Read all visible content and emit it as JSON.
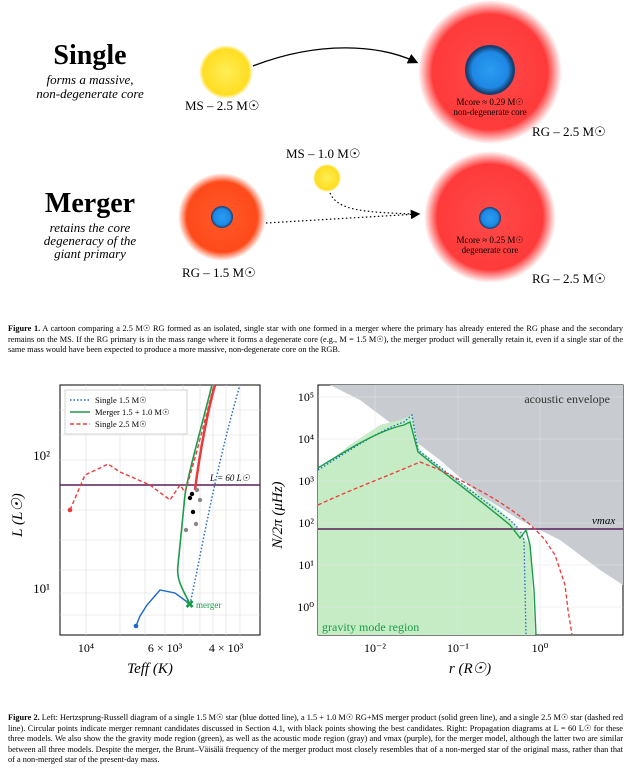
{
  "figure1": {
    "single_title": "Single",
    "single_subtitle_line1": "forms a massive,",
    "single_subtitle_line2": "non-degenerate core",
    "merger_title": "Merger",
    "merger_subtitle_line1": "retains the core",
    "merger_subtitle_line2": "degeneracy of the",
    "merger_subtitle_line3": "giant primary",
    "ms_25": "MS – 2.5 M☉",
    "ms_10": "MS – 1.0 M☉",
    "rg_15": "RG – 1.5 M☉",
    "rg_25_top": "RG – 2.5 M☉",
    "rg_25_bottom": "RG – 2.5 M☉",
    "core_top_mass": "Mcore ≈ 0.29 M☉",
    "core_top_type": "non-degenerate core",
    "core_bottom_mass": "Mcore ≈ 0.25 M☉",
    "core_bottom_type": "degenerate core",
    "caption_label": "Figure 1.",
    "caption_text": "A cartoon comparing a 2.5 M☉ RG formed as an isolated, single star with one formed in a merger where the primary has already entered the RG phase and the secondary remains on the MS. If the RG primary is in the mass range where it forms a degenerate core (e.g., M = 1.5 M☉), the merger product will generally retain it, even if a single star of the same mass would have been expected to produce a more massive, non-degenerate core on the RGB."
  },
  "figure2": {
    "caption_label": "Figure 2.",
    "caption_text": "Left: Hertzsprung-Russell diagram of a single 1.5 M☉ star (blue dotted line), a 1.5 + 1.0 M☉ RG+MS merger product (solid green line), and a single 2.5 M☉ star (dashed red line). Circular points indicate merger remnant candidates discussed in Section 4.1, with black points showing the best candidates. Right: Propagation diagrams at L = 60 L☉ for these three models. We also show the the gravity mode region (green), as well as the acoustic mode region (gray) and νmax (purple), for the merger model, although the latter two are similar between all three models. Despite the merger, the Brunt–Väisälä frequency of the merger product most closely resembles that of a non-merged star of the original mass, rather than that of a non-merged star of the present-day mass.",
    "left": {
      "xlabel": "Teff (K)",
      "ylabel": "L (L☉)",
      "xticks": [
        "10⁴",
        "6 × 10³",
        "4 × 10³"
      ],
      "yticks": [
        "10²",
        "10¹"
      ],
      "legend": [
        "Single 1.5 M☉",
        "Merger 1.5 + 1.0 M☉",
        "Single 2.5 M☉"
      ],
      "hline_label": "L = 60 L☉",
      "annotation": "merger"
    },
    "right": {
      "xlabel": "r (R☉)",
      "ylabel": "N/2π (μHz)",
      "xticks": [
        "10⁻²",
        "10⁻¹",
        "10⁰"
      ],
      "yticks": [
        "10⁵",
        "10⁴",
        "10³",
        "10²",
        "10¹",
        "10⁰"
      ],
      "acoustic_label": "acoustic envelope",
      "gravity_label": "gravity mode region",
      "numax_label": "νmax"
    }
  },
  "chart_data": [
    {
      "type": "line",
      "xlabel": "Teff (K)",
      "ylabel": "L (L☉)",
      "xscale": "log-reversed",
      "yscale": "log",
      "xlim": [
        12000,
        3400
      ],
      "ylim": [
        6,
        300
      ],
      "legend_position": "top-left",
      "grid": true,
      "hline": 60,
      "series": [
        {
          "name": "Single 1.5 M☉",
          "style": "blue dotted",
          "x": [
            4900,
            4700,
            4400,
            4100
          ],
          "y": [
            7.5,
            25,
            100,
            300
          ]
        },
        {
          "name": "Merger 1.5 + 1.0 M☉",
          "style": "green solid",
          "x": [
            7600,
            7200,
            6300,
            5400,
            5200,
            5000,
            4900,
            4700
          ],
          "y": [
            5,
            7,
            9,
            7.5,
            20,
            60,
            130,
            300
          ]
        },
        {
          "name": "Single 2.5 M☉",
          "style": "red dashed",
          "x": [
            11000,
            9400,
            8900,
            7600,
            6700,
            5500,
            5100,
            4700
          ],
          "y": [
            40,
            75,
            80,
            70,
            60,
            40,
            60,
            300
          ]
        }
      ]
    },
    {
      "type": "area",
      "xlabel": "r (R☉)",
      "ylabel": "N/2π (μHz)",
      "xscale": "log",
      "yscale": "log",
      "xlim": [
        0.002,
        8
      ],
      "ylim": [
        0.1,
        130000
      ],
      "numax": 70,
      "series": [
        {
          "name": "Single 1.5 M☉",
          "style": "blue dotted",
          "x": [
            0.002,
            0.01,
            0.02,
            0.03,
            0.04,
            0.1,
            0.3,
            0.5,
            0.55,
            0.6
          ],
          "y": [
            2000,
            7000,
            20000,
            30000,
            6000,
            1500,
            250,
            90,
            10,
            0.1
          ]
        },
        {
          "name": "Merger 1.5 + 1.0 M☉",
          "style": "green solid",
          "x": [
            0.002,
            0.01,
            0.02,
            0.03,
            0.04,
            0.1,
            0.3,
            0.6,
            0.7,
            0.8,
            0.9
          ],
          "y": [
            2000,
            7000,
            20000,
            25000,
            6000,
            1500,
            250,
            80,
            50,
            10,
            0.1
          ]
        },
        {
          "name": "Single 2.5 M☉",
          "style": "red dashed",
          "x": [
            0.002,
            0.01,
            0.03,
            0.05,
            0.1,
            0.3,
            1,
            1.5,
            2.5,
            3
          ],
          "y": [
            300,
            800,
            2500,
            3000,
            1500,
            400,
            150,
            70,
            20,
            0.1
          ]
        }
      ]
    }
  ]
}
